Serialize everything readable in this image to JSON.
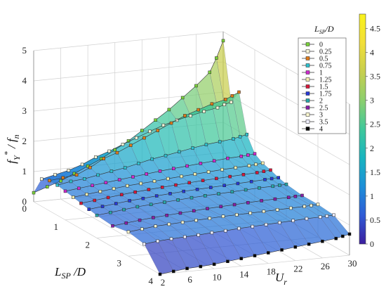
{
  "chart_data": {
    "type": "surface3d",
    "axes": {
      "z": {
        "label_main": "f",
        "label_sup1": "Y",
        "label_sup2": "*",
        "label_den": "f",
        "label_den_sub": "n",
        "ticks": [
          "0",
          "1",
          "2",
          "3",
          "4",
          "5"
        ],
        "range": [
          0,
          5
        ]
      },
      "x": {
        "label_main": "L",
        "label_sub": "SP",
        "label_suffix": " /D",
        "ticks": [
          "0",
          "1",
          "2",
          "3",
          "4"
        ],
        "range": [
          0,
          4
        ]
      },
      "y": {
        "label_main": "U",
        "label_sub": "r",
        "ticks": [
          "2",
          "6",
          "10",
          "14",
          "18",
          "22",
          "26",
          "30"
        ],
        "range": [
          2,
          30
        ]
      }
    },
    "colorbar": {
      "ticks": [
        "0",
        "0.5",
        "1",
        "1.5",
        "2",
        "2.5",
        "3",
        "3.5",
        "4",
        "4.5"
      ],
      "range": [
        0,
        4.8
      ],
      "colors": [
        "#3b1e9e",
        "#2f5bd6",
        "#1d8fd8",
        "#18b5c0",
        "#40c89a",
        "#8ccf6e",
        "#c8cf4e",
        "#f2df3a",
        "#f9f21b"
      ]
    },
    "legend": {
      "title_main": "L",
      "title_sub": "SP",
      "title_suffix": "/D",
      "entries": [
        {
          "label": "0",
          "color": "#7bd23b"
        },
        {
          "label": "0.25",
          "color": "#f6f4d8"
        },
        {
          "label": "0.5",
          "color": "#e07b1a"
        },
        {
          "label": "0.75",
          "color": "#2fc2cf"
        },
        {
          "label": "1",
          "color": "#d02bd0"
        },
        {
          "label": "1.25",
          "color": "#f5f0b0"
        },
        {
          "label": "1.5",
          "color": "#d8183a"
        },
        {
          "label": "1.75",
          "color": "#2838d8"
        },
        {
          "label": "2",
          "color": "#27a7a8"
        },
        {
          "label": "2.5",
          "color": "#8a1fa8"
        },
        {
          "label": "3",
          "color": "#fbf8d0"
        },
        {
          "label": "3.5",
          "color": "#f0f0ff"
        },
        {
          "label": "4",
          "color": "#050505"
        }
      ]
    },
    "series": [
      {
        "name": "0",
        "x": 0.0,
        "values": [
          0.3,
          0.45,
          0.6,
          0.8,
          1.0,
          1.2,
          1.45,
          1.7,
          2.0,
          2.3,
          2.6,
          2.95,
          3.3,
          3.7,
          4.15,
          4.7
        ]
      },
      {
        "name": "0.25",
        "x": 0.25,
        "values": [
          0.9,
          1.0,
          1.1,
          1.25,
          1.45,
          1.6,
          1.78,
          1.95,
          2.12,
          2.28,
          2.4,
          2.5,
          2.6,
          2.68,
          2.76,
          2.82
        ]
      },
      {
        "name": "0.5",
        "x": 0.5,
        "values": [
          1.0,
          1.05,
          1.1,
          1.3,
          1.55,
          1.7,
          1.9,
          2.1,
          2.3,
          2.5,
          2.7,
          2.85,
          3.0,
          3.1,
          3.2,
          3.3
        ]
      },
      {
        "name": "0.75",
        "x": 0.75,
        "values": [
          1.0,
          1.08,
          1.12,
          1.2,
          1.28,
          1.35,
          1.45,
          1.55,
          1.62,
          1.7,
          1.78,
          1.85,
          1.9,
          1.95,
          2.0,
          2.05
        ]
      },
      {
        "name": "1",
        "x": 1.0,
        "values": [
          0.95,
          1.0,
          1.05,
          1.1,
          1.15,
          1.2,
          1.25,
          1.3,
          1.34,
          1.38,
          1.42,
          1.46,
          1.5,
          1.52,
          1.54,
          1.56
        ]
      },
      {
        "name": "1.25",
        "x": 1.25,
        "values": [
          0.9,
          0.95,
          1.0,
          1.05,
          1.1,
          1.13,
          1.16,
          1.2,
          1.23,
          1.26,
          1.29,
          1.32,
          1.34,
          1.36,
          1.38,
          1.4
        ]
      },
      {
        "name": "1.5",
        "x": 1.5,
        "values": [
          0.85,
          0.9,
          0.95,
          1.0,
          1.04,
          1.08,
          1.11,
          1.14,
          1.17,
          1.2,
          1.22,
          1.24,
          1.26,
          1.28,
          1.3,
          1.32
        ]
      },
      {
        "name": "1.75",
        "x": 1.75,
        "values": [
          0.8,
          0.85,
          0.9,
          0.95,
          0.98,
          1.02,
          1.05,
          1.08,
          1.1,
          1.12,
          1.14,
          1.16,
          1.18,
          1.2,
          1.21,
          1.22
        ]
      },
      {
        "name": "2",
        "x": 2.0,
        "values": [
          0.75,
          0.8,
          0.85,
          0.9,
          0.93,
          0.96,
          0.99,
          1.02,
          1.04,
          1.06,
          1.08,
          1.1,
          1.12,
          1.13,
          1.14,
          1.15
        ]
      },
      {
        "name": "2.5",
        "x": 2.5,
        "values": [
          0.7,
          0.75,
          0.8,
          0.84,
          0.87,
          0.9,
          0.93,
          0.96,
          0.98,
          1.0,
          1.02,
          1.04,
          1.05,
          1.06,
          1.07,
          1.08
        ]
      },
      {
        "name": "3",
        "x": 3.0,
        "values": [
          0.8,
          0.85,
          0.9,
          0.92,
          0.94,
          0.96,
          0.98,
          1.0,
          1.01,
          1.02,
          1.03,
          1.04,
          1.05,
          1.06,
          1.07,
          1.08
        ]
      },
      {
        "name": "3.5",
        "x": 3.5,
        "values": [
          0.7,
          0.75,
          0.78,
          0.8,
          0.82,
          0.85,
          0.87,
          0.9,
          0.92,
          0.94,
          0.96,
          0.98,
          1.0,
          1.01,
          1.02,
          1.03
        ]
      },
      {
        "name": "4",
        "x": 4.0,
        "values": [
          0.0,
          0.05,
          0.1,
          0.12,
          0.15,
          0.2,
          0.25,
          0.3,
          0.35,
          0.4,
          0.45,
          0.5,
          0.55,
          0.6,
          0.65,
          0.7
        ]
      }
    ],
    "ur_samples": [
      2,
      4,
      6,
      8,
      10,
      12,
      14,
      16,
      18,
      20,
      22,
      24,
      26,
      28,
      29,
      30
    ]
  }
}
